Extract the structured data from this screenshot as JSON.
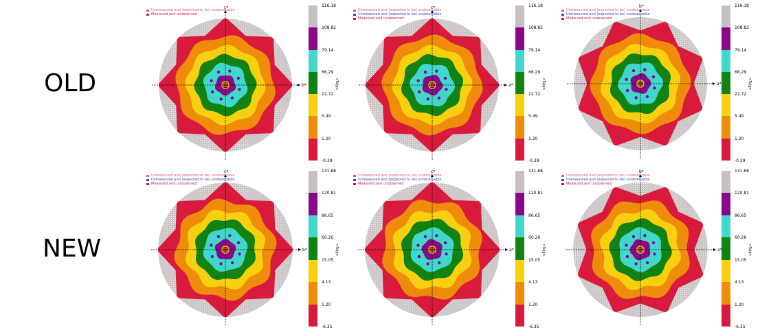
{
  "rows": [
    "OLD",
    "NEW"
  ],
  "legend": {
    "unmeasured_expected_unobservable": "Unmeasured and (expected to be) unobservable",
    "measured_unobserved": "Measured and unobserved",
    "colors": {
      "unobservable": "#e05a7a",
      "unobservable_blue": "#3a3acc",
      "measured": "#d01c3c"
    }
  },
  "colorbar_unit": "<Tu|g>",
  "colorbar_colors": [
    "#d81b3c",
    "#f08c0c",
    "#f8d010",
    "#128212",
    "#40d8cc",
    "#880888",
    "#c8c0c0"
  ],
  "chart_data": [
    {
      "type": "heatmap",
      "row": "OLD",
      "column": 1,
      "x_axis": "b*",
      "y_axis": "c*",
      "colorbar_ticks": [
        "116.18",
        "108.82",
        "79.14",
        "66.29",
        "22.72",
        "5.49",
        "1.20",
        "-0.39"
      ],
      "legend_rows": 2
    },
    {
      "type": "heatmap",
      "row": "OLD",
      "column": 2,
      "x_axis": "a*",
      "y_axis": "c*",
      "colorbar_ticks": [
        "116.18",
        "108.82",
        "79.14",
        "66.29",
        "22.72",
        "5.49",
        "1.20",
        "-0.39"
      ],
      "legend_rows": 3
    },
    {
      "type": "heatmap",
      "row": "OLD",
      "column": 3,
      "x_axis": "a*",
      "y_axis": "b*",
      "colorbar_ticks": [
        "116.18",
        "108.82",
        "79.14",
        "66.29",
        "22.72",
        "5.49",
        "1.20",
        "-0.39"
      ],
      "legend_rows": 3
    },
    {
      "type": "heatmap",
      "row": "NEW",
      "column": 1,
      "x_axis": "b*",
      "y_axis": "c*",
      "colorbar_ticks": [
        "131.68",
        "120.81",
        "86.65",
        "60.26",
        "15.05",
        "4.13",
        "1.20",
        "-6.35"
      ],
      "legend_rows": 3
    },
    {
      "type": "heatmap",
      "row": "NEW",
      "column": 2,
      "x_axis": "a*",
      "y_axis": "c*",
      "colorbar_ticks": [
        "131.68",
        "120.81",
        "86.65",
        "60.26",
        "15.05",
        "4.13",
        "1.20",
        "-6.35"
      ],
      "legend_rows": 3
    },
    {
      "type": "heatmap",
      "row": "NEW",
      "column": 3,
      "x_axis": "a*",
      "y_axis": "b*",
      "colorbar_ticks": [
        "131.68",
        "120.81",
        "86.65",
        "60.26",
        "15.05",
        "4.13",
        "1.20",
        "-6.35"
      ],
      "legend_rows": 3
    }
  ]
}
